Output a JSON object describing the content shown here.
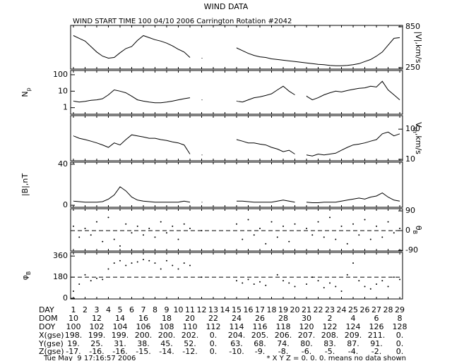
{
  "title": "WIND DATA",
  "subtitle": "WIND START TIME 100 04/10 2006 Carrington Rotation #2042",
  "chart_data": [
    {
      "type": "line",
      "ylabel": [
        "|V|,km/s"
      ],
      "axis_side": "right",
      "log": false,
      "xlim": [
        0.76,
        29.24
      ],
      "ylim": [
        230,
        870
      ],
      "yticks": [
        250,
        850
      ],
      "x": [
        1,
        1.5,
        2,
        2.5,
        3,
        3.5,
        4,
        4.5,
        5,
        5.5,
        6,
        6.5,
        7,
        7.5,
        8,
        8.5,
        9,
        9.5,
        10,
        10.5,
        11,
        11.5,
        12,
        12.5,
        13,
        13.5,
        14,
        14.5,
        15,
        15.5,
        16,
        16.5,
        17,
        17.5,
        18,
        18.5,
        19,
        19.5,
        20,
        20.5,
        21,
        21.5,
        22,
        22.5,
        23,
        23.5,
        24,
        24.5,
        25,
        25.5,
        26,
        26.5,
        27,
        27.5,
        28,
        28.5,
        29
      ],
      "values": [
        720,
        680,
        640,
        560,
        480,
        420,
        390,
        400,
        470,
        530,
        560,
        650,
        720,
        690,
        660,
        640,
        610,
        570,
        520,
        480,
        400,
        null,
        390,
        null,
        null,
        null,
        null,
        null,
        540,
        500,
        460,
        430,
        410,
        400,
        380,
        370,
        360,
        350,
        340,
        330,
        320,
        310,
        300,
        295,
        285,
        280,
        280,
        285,
        295,
        310,
        340,
        370,
        420,
        480,
        580,
        680,
        690
      ]
    },
    {
      "type": "line",
      "ylabel": [
        "N",
        "p"
      ],
      "axis_side": "left",
      "log": true,
      "xlim": [
        0.76,
        29.24
      ],
      "ylim": [
        0.4,
        180
      ],
      "yticks": [
        1,
        10,
        100
      ],
      "x": [
        1,
        1.5,
        2,
        2.5,
        3,
        3.5,
        4,
        4.5,
        5,
        5.5,
        6,
        6.5,
        7,
        7.5,
        8,
        8.5,
        9,
        9.5,
        10,
        10.5,
        11,
        11.5,
        12,
        12.5,
        13,
        13.5,
        14,
        14.5,
        15,
        15.5,
        16,
        16.5,
        17,
        17.5,
        18,
        18.5,
        19,
        19.5,
        20,
        20.5,
        21,
        21.5,
        22,
        22.5,
        23,
        23.5,
        24,
        24.5,
        25,
        25.5,
        26,
        26.5,
        27,
        27.5,
        28,
        28.5,
        29
      ],
      "values": [
        2.5,
        2.2,
        2.4,
        2.8,
        3,
        3.5,
        6,
        12,
        10,
        8,
        5,
        3,
        2.5,
        2.2,
        2,
        2,
        2.2,
        2.5,
        3,
        3.5,
        4,
        null,
        3,
        null,
        null,
        null,
        null,
        null,
        2.5,
        2.2,
        3,
        4,
        4.5,
        5.5,
        7,
        12,
        20,
        10,
        6,
        null,
        5,
        3,
        4,
        6,
        8,
        10,
        9,
        11,
        13,
        15,
        16,
        20,
        18,
        40,
        12,
        6,
        3
      ]
    },
    {
      "type": "line",
      "ylabel": [
        "V",
        "th",
        ",km/s"
      ],
      "axis_side": "right",
      "log": true,
      "xlim": [
        0.76,
        29.24
      ],
      "ylim": [
        9,
        280
      ],
      "yticks": [
        10,
        100
      ],
      "x": [
        1,
        1.5,
        2,
        2.5,
        3,
        3.5,
        4,
        4.5,
        5,
        5.5,
        6,
        6.5,
        7,
        7.5,
        8,
        8.5,
        9,
        9.5,
        10,
        10.5,
        11,
        11.5,
        12,
        12.5,
        13,
        13.5,
        14,
        14.5,
        15,
        15.5,
        16,
        16.5,
        17,
        17.5,
        18,
        18.5,
        19,
        19.5,
        20,
        20.5,
        21,
        21.5,
        22,
        22.5,
        23,
        23.5,
        24,
        24.5,
        25,
        25.5,
        26,
        26.5,
        27,
        27.5,
        28,
        28.5,
        29
      ],
      "values": [
        60,
        50,
        45,
        40,
        35,
        30,
        25,
        35,
        30,
        45,
        65,
        60,
        55,
        50,
        50,
        45,
        42,
        38,
        35,
        30,
        15,
        null,
        14,
        null,
        null,
        null,
        null,
        null,
        45,
        40,
        35,
        35,
        32,
        30,
        25,
        22,
        18,
        20,
        15,
        null,
        14,
        13,
        15,
        14,
        15,
        16,
        20,
        25,
        30,
        32,
        35,
        40,
        45,
        70,
        80,
        60,
        70
      ]
    },
    {
      "type": "line",
      "ylabel": [
        "|B|,nT"
      ],
      "axis_side": "left",
      "log": false,
      "xlim": [
        0.76,
        29.24
      ],
      "ylim": [
        -2,
        42
      ],
      "yticks": [
        0,
        40
      ],
      "x": [
        1,
        1.5,
        2,
        2.5,
        3,
        3.5,
        4,
        4.5,
        5,
        5.5,
        6,
        6.5,
        7,
        7.5,
        8,
        8.5,
        9,
        9.5,
        10,
        10.5,
        11,
        11.5,
        12,
        12.5,
        13,
        13.5,
        14,
        14.5,
        15,
        15.5,
        16,
        16.5,
        17,
        17.5,
        18,
        18.5,
        19,
        19.5,
        20,
        20.5,
        21,
        21.5,
        22,
        22.5,
        23,
        23.5,
        24,
        24.5,
        25,
        25.5,
        26,
        26.5,
        27,
        27.5,
        28,
        28.5,
        29
      ],
      "values": [
        4,
        3.5,
        3,
        3,
        3,
        3.5,
        6,
        10,
        18,
        14,
        8,
        5,
        4,
        3.5,
        3,
        3,
        3,
        3,
        3,
        4,
        3,
        null,
        3,
        null,
        null,
        null,
        null,
        null,
        4,
        4,
        3.5,
        3,
        3,
        3,
        3,
        4,
        5,
        4,
        3,
        null,
        3,
        2.5,
        2.5,
        3,
        3,
        3,
        4,
        5,
        6,
        7,
        6,
        8,
        9,
        12,
        8,
        5,
        4
      ]
    },
    {
      "type": "scatter",
      "ylabel": [
        "θ",
        "B"
      ],
      "axis_side": "right",
      "log": false,
      "hline": 0,
      "xlim": [
        0.76,
        29.24
      ],
      "ylim": [
        -93,
        100
      ],
      "yticks": [
        90,
        0,
        -90
      ],
      "x": [
        1,
        1.5,
        2,
        2.5,
        3,
        3.5,
        4,
        4.5,
        5,
        5.5,
        6,
        6.5,
        7,
        7.5,
        8,
        8.5,
        9,
        9.5,
        10,
        10.5,
        11,
        11.5,
        12,
        12.5,
        13,
        13.5,
        14,
        14.5,
        15,
        15.5,
        16,
        16.5,
        17,
        17.5,
        18,
        18.5,
        19,
        19.5,
        20,
        20.5,
        21,
        21.5,
        22,
        22.5,
        23,
        23.5,
        24,
        24.5,
        25,
        25.5,
        26,
        26.5,
        27,
        27.5,
        28,
        28.5,
        29
      ],
      "values": [
        20,
        -30,
        10,
        -20,
        40,
        -50,
        60,
        -40,
        -70,
        30,
        -10,
        20,
        -20,
        10,
        -30,
        40,
        -10,
        20,
        -40,
        30,
        10,
        null,
        0,
        null,
        null,
        null,
        null,
        null,
        30,
        -40,
        50,
        -20,
        10,
        -60,
        40,
        -30,
        20,
        -50,
        30,
        null,
        10,
        -20,
        40,
        -30,
        60,
        -40,
        20,
        -60,
        30,
        -20,
        50,
        -40,
        20,
        -30,
        40,
        -10,
        10
      ]
    },
    {
      "type": "scatter",
      "ylabel": [
        "φ",
        "B"
      ],
      "axis_side": "left",
      "log": false,
      "hline": 180,
      "xlim": [
        0.76,
        29.24
      ],
      "ylim": [
        -6,
        391
      ],
      "yticks": [
        360,
        180,
        0
      ],
      "x": [
        1,
        1.5,
        2,
        2.5,
        3,
        3.5,
        4,
        4.5,
        5,
        5.5,
        6,
        6.5,
        7,
        7.5,
        8,
        8.5,
        9,
        9.5,
        10,
        10.5,
        11,
        11.5,
        12,
        12.5,
        13,
        13.5,
        14,
        14.5,
        15,
        15.5,
        16,
        16.5,
        17,
        17.5,
        18,
        18.5,
        19,
        19.5,
        20,
        20.5,
        21,
        21.5,
        22,
        22.5,
        23,
        23.5,
        24,
        24.5,
        25,
        25.5,
        26,
        26.5,
        27,
        27.5,
        28,
        28.5,
        29
      ],
      "values": [
        60,
        120,
        200,
        150,
        170,
        160,
        250,
        300,
        320,
        280,
        300,
        310,
        330,
        320,
        300,
        250,
        320,
        280,
        250,
        300,
        280,
        null,
        180,
        null,
        null,
        null,
        null,
        null,
        150,
        130,
        160,
        120,
        140,
        110,
        null,
        200,
        150,
        130,
        100,
        null,
        120,
        180,
        150,
        90,
        130,
        100,
        60,
        200,
        300,
        150,
        100,
        80,
        120,
        150,
        100,
        180,
        160
      ]
    }
  ],
  "table": {
    "rows": [
      {
        "label": "DAY",
        "values": [
          1,
          2,
          3,
          4,
          5,
          6,
          7,
          8,
          9,
          10,
          11,
          12,
          13,
          14,
          15,
          16,
          17,
          18,
          19,
          20,
          21,
          22,
          23,
          24,
          25,
          26,
          27,
          28,
          29
        ]
      },
      {
        "label": "DOM",
        "values": [
          10,
          12,
          14,
          16,
          18,
          20,
          22,
          24,
          26,
          28,
          30,
          2,
          4,
          6,
          8
        ]
      },
      {
        "label": "DOY",
        "values": [
          100,
          102,
          104,
          106,
          108,
          110,
          112,
          114,
          116,
          118,
          120,
          122,
          124,
          126,
          128
        ]
      },
      {
        "label": "X(gse)",
        "values": [
          "198.",
          "199.",
          "199.",
          "200.",
          "200.",
          "202.",
          "0.",
          "204.",
          "205.",
          "206.",
          "207.",
          "208.",
          "209.",
          "211.",
          "0."
        ]
      },
      {
        "label": "Y(gse)",
        "values": [
          "19.",
          "25.",
          "31.",
          "38.",
          "45.",
          "52.",
          "0.",
          "63.",
          "68.",
          "74.",
          "80.",
          "83.",
          "87.",
          "91.",
          "0."
        ]
      },
      {
        "label": "Z(gse)",
        "values": [
          "-17.",
          "-16.",
          "-16.",
          "-15.",
          "-14.",
          "-12.",
          "0.",
          "-10.",
          "-9.",
          "-8.",
          "-6.",
          "-5.",
          "-4.",
          "-2.",
          "0."
        ]
      }
    ]
  },
  "footer": {
    "date": "Tue May  9 17:16:57 2006",
    "note": "* X Y Z = 0. 0. 0. means no data shown"
  }
}
